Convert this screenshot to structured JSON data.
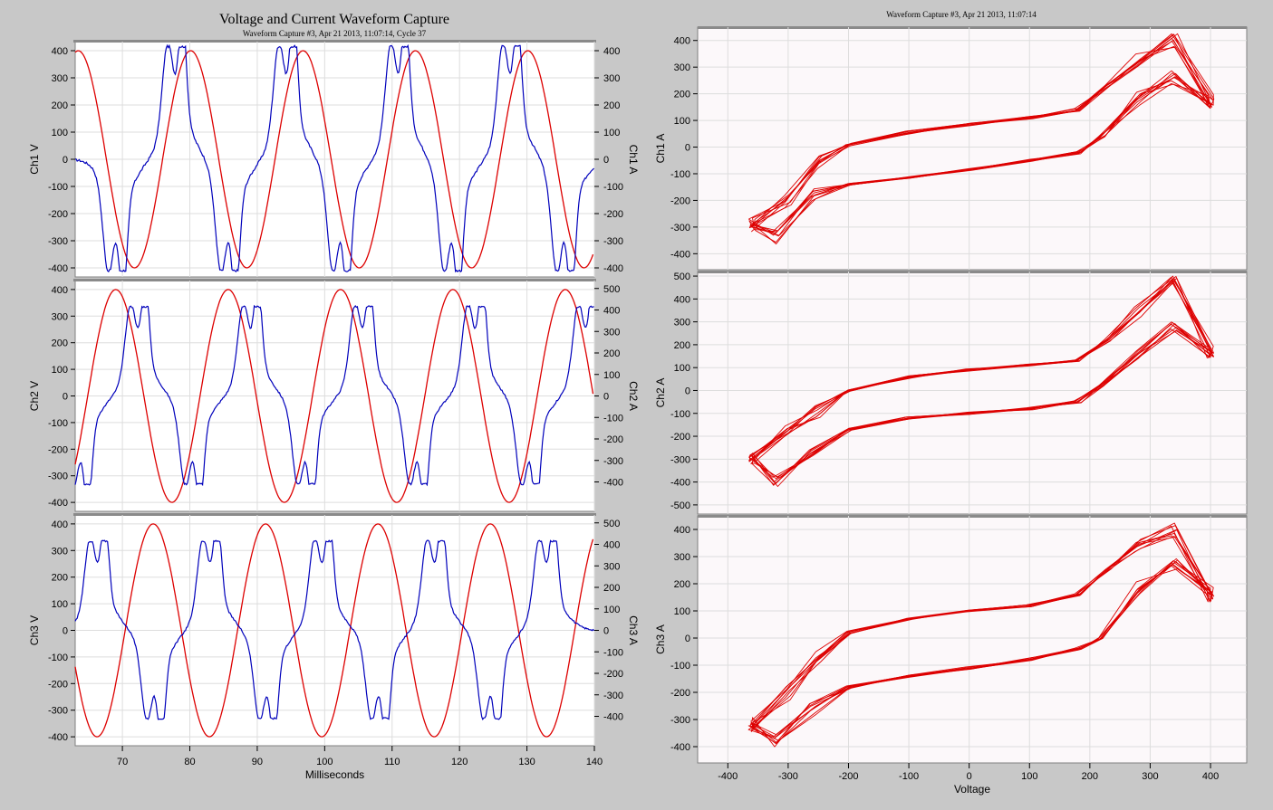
{
  "left_title": "Voltage and Current Waveform Capture",
  "left_subtitle": "Waveform Capture #3, Apr 21 2013, 11:07:14,  Cycle 37",
  "right_subtitle": "Waveform Capture #3, Apr 21 2013, 11:07:14",
  "colors": {
    "voltage": "#dd0000",
    "current": "#0000bb",
    "background": "#c8c8c8",
    "plot_bg": "#ffffff",
    "grid": "#dddddd"
  },
  "chart_data": [
    {
      "type": "line",
      "title": "Voltage and Current Waveform Capture",
      "subtitle": "Waveform Capture #3, Apr 21 2013, 11:07:14,  Cycle 37",
      "xlabel": "Milliseconds",
      "xlim": [
        63,
        140
      ],
      "x_ticks": [
        70,
        80,
        90,
        100,
        110,
        120,
        130,
        140
      ],
      "panels": [
        {
          "name": "Ch1",
          "ylabel_left": "Ch1 V",
          "ylabel_right": "Ch1 A",
          "ylim_left": [
            -420,
            420
          ],
          "ylim_right": [
            -420,
            420
          ],
          "left_ticks": [
            -400,
            -300,
            -200,
            -100,
            0,
            100,
            200,
            300,
            400
          ],
          "right_ticks": [
            -400,
            -300,
            -200,
            -100,
            0,
            100,
            200,
            300,
            400
          ],
          "voltage_amplitude": 400,
          "voltage_phase_deg": 80,
          "current_peak_times_ms": [
            78.3,
            94.8,
            111.4,
            128.0
          ],
          "current_trough_times_ms": [
            69.5,
            86.2,
            102.8,
            119.3,
            136.0
          ],
          "current_peak": 410,
          "current_trough": -400
        },
        {
          "name": "Ch2",
          "ylabel_left": "Ch2 V",
          "ylabel_right": "Ch2 A",
          "ylim_left": [
            -420,
            420
          ],
          "ylim_right": [
            -520,
            520
          ],
          "left_ticks": [
            -400,
            -300,
            -200,
            -100,
            0,
            100,
            200,
            300,
            400
          ],
          "right_ticks": [
            -400,
            -300,
            -200,
            -100,
            0,
            100,
            200,
            300,
            400,
            500
          ],
          "voltage_amplitude": 400,
          "voltage_phase_deg": -40,
          "current_peak_times_ms": [
            72.8,
            89.5,
            106.1,
            122.8,
            139.2
          ],
          "current_trough_times_ms": [
            64.3,
            80.9,
            97.6,
            114.2,
            130.8
          ],
          "current_peak": 410,
          "current_trough": -400
        },
        {
          "name": "Ch3",
          "ylabel_left": "Ch3 V",
          "ylabel_right": "Ch3 A",
          "ylim_left": [
            -420,
            420
          ],
          "ylim_right": [
            -520,
            520
          ],
          "left_ticks": [
            -400,
            -300,
            -200,
            -100,
            0,
            100,
            200,
            300,
            400
          ],
          "right_ticks": [
            -400,
            -300,
            -200,
            -100,
            0,
            100,
            200,
            300,
            400,
            500
          ],
          "voltage_amplitude": 400,
          "voltage_phase_deg": 200,
          "current_peak_times_ms": [
            66.8,
            83.5,
            100.1,
            116.8,
            133.4
          ],
          "current_trough_times_ms": [
            75.2,
            91.9,
            108.5,
            125.1
          ],
          "current_peak": 410,
          "current_trough": -400
        }
      ]
    },
    {
      "type": "scatter",
      "subtitle": "Waveform Capture #3, Apr 21 2013, 11:07:14",
      "xlabel": "Voltage",
      "xlim": [
        -450,
        460
      ],
      "x_ticks": [
        -400,
        -300,
        -200,
        -100,
        0,
        100,
        200,
        300,
        400
      ],
      "panels": [
        {
          "ylabel": "Ch1 A",
          "ylim": [
            -460,
            450
          ],
          "y_ticks": [
            -400,
            -300,
            -200,
            -100,
            0,
            100,
            200,
            300,
            400
          ],
          "upper_branch": [
            [
              -360,
              -290
            ],
            [
              -300,
              -200
            ],
            [
              -250,
              -60
            ],
            [
              -200,
              10
            ],
            [
              -100,
              55
            ],
            [
              0,
              85
            ],
            [
              100,
              110
            ],
            [
              180,
              140
            ],
            [
              230,
              230
            ],
            [
              280,
              330
            ],
            [
              340,
              400
            ],
            [
              400,
              170
            ]
          ],
          "lower_branch": [
            [
              400,
              170
            ],
            [
              340,
              260
            ],
            [
              280,
              180
            ],
            [
              220,
              40
            ],
            [
              180,
              -20
            ],
            [
              100,
              -50
            ],
            [
              0,
              -85
            ],
            [
              -100,
              -115
            ],
            [
              -200,
              -140
            ],
            [
              -260,
              -180
            ],
            [
              -320,
              -340
            ],
            [
              -360,
              -290
            ]
          ]
        },
        {
          "ylabel": "Ch2 A",
          "ylim": [
            -540,
            520
          ],
          "y_ticks": [
            -500,
            -400,
            -300,
            -200,
            -100,
            0,
            100,
            200,
            300,
            400,
            500
          ],
          "upper_branch": [
            [
              -360,
              -300
            ],
            [
              -300,
              -180
            ],
            [
              -250,
              -90
            ],
            [
              -200,
              0
            ],
            [
              -100,
              60
            ],
            [
              0,
              90
            ],
            [
              100,
              110
            ],
            [
              180,
              130
            ],
            [
              230,
              220
            ],
            [
              280,
              340
            ],
            [
              340,
              480
            ],
            [
              400,
              170
            ]
          ],
          "lower_branch": [
            [
              400,
              170
            ],
            [
              340,
              280
            ],
            [
              280,
              160
            ],
            [
              220,
              20
            ],
            [
              180,
              -50
            ],
            [
              100,
              -80
            ],
            [
              0,
              -100
            ],
            [
              -100,
              -120
            ],
            [
              -200,
              -170
            ],
            [
              -260,
              -260
            ],
            [
              -320,
              -400
            ],
            [
              -360,
              -300
            ]
          ]
        },
        {
          "ylabel": "Ch3 A",
          "ylim": [
            -460,
            450
          ],
          "y_ticks": [
            -400,
            -300,
            -200,
            -100,
            0,
            100,
            200,
            300,
            400
          ],
          "upper_branch": [
            [
              -360,
              -320
            ],
            [
              -300,
              -200
            ],
            [
              -250,
              -60
            ],
            [
              -200,
              20
            ],
            [
              -100,
              70
            ],
            [
              0,
              100
            ],
            [
              100,
              120
            ],
            [
              180,
              160
            ],
            [
              230,
              250
            ],
            [
              280,
              340
            ],
            [
              340,
              400
            ],
            [
              400,
              160
            ]
          ],
          "lower_branch": [
            [
              400,
              160
            ],
            [
              340,
              280
            ],
            [
              280,
              180
            ],
            [
              220,
              0
            ],
            [
              180,
              -40
            ],
            [
              100,
              -80
            ],
            [
              0,
              -110
            ],
            [
              -100,
              -140
            ],
            [
              -200,
              -180
            ],
            [
              -260,
              -260
            ],
            [
              -320,
              -380
            ],
            [
              -360,
              -320
            ]
          ]
        }
      ]
    }
  ]
}
